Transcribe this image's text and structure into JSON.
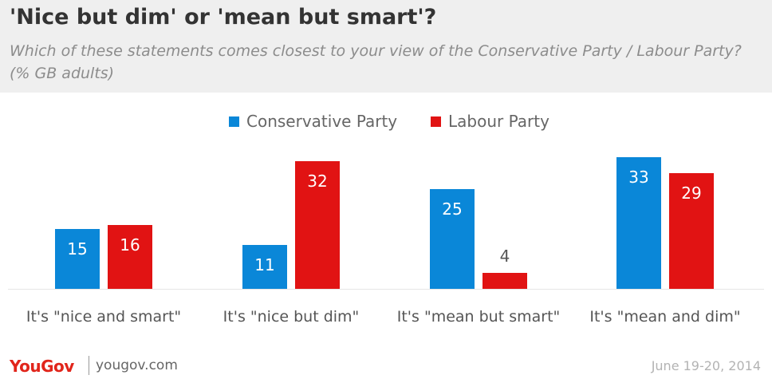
{
  "title": "'Nice but dim' or 'mean but smart'?",
  "subtitle": "Which of these statements comes closest to your view of the Conservative Party / Labour Party? (% GB adults)",
  "legend": [
    {
      "name": "Conservative Party",
      "color": "#0a87d8"
    },
    {
      "name": "Labour Party",
      "color": "#e11313"
    }
  ],
  "footer": {
    "logo": "YouGov",
    "url": "yougov.com",
    "date": "June 19-20, 2014"
  },
  "chart_data": {
    "type": "bar",
    "categories": [
      "It's \"nice and smart\"",
      "It's \"nice but dim\"",
      "It's \"mean but smart\"",
      "It's \"mean and dim\""
    ],
    "series": [
      {
        "name": "Conservative Party",
        "values": [
          15,
          11,
          25,
          33
        ],
        "color": "#0a87d8"
      },
      {
        "name": "Labour Party",
        "values": [
          16,
          32,
          4,
          29
        ],
        "color": "#e11313"
      }
    ],
    "ylim": [
      0,
      36
    ],
    "grid": false,
    "legend_position": "top-center"
  }
}
